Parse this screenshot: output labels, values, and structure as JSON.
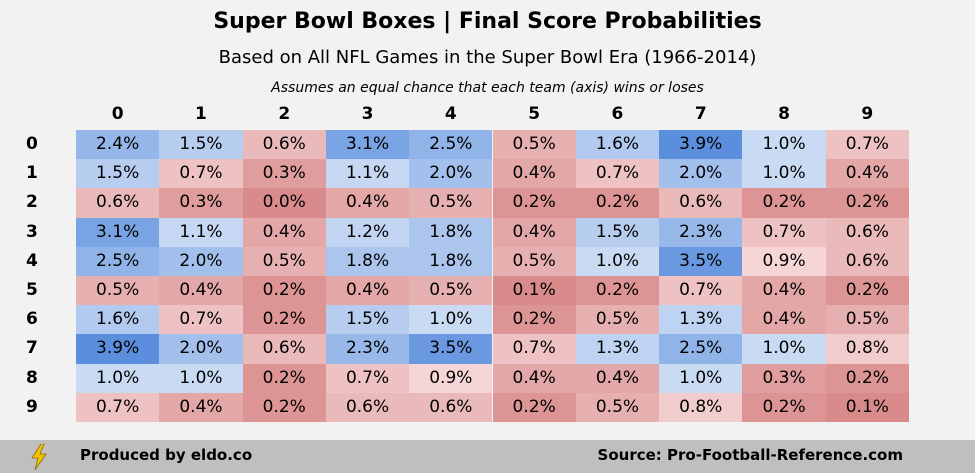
{
  "header": {
    "title": "Super Bowl Boxes | Final Score Probabilities",
    "subtitle": "Based on All NFL Games in the Super Bowl Era (1966-2014)",
    "note": "Assumes an equal chance that each team (axis) wins or loses"
  },
  "footer": {
    "produced": "Produced by eldo.co",
    "source": "Source: Pro-Football-Reference.com",
    "icon": "lightning-bolt-icon"
  },
  "colors": {
    "high": "#5b8fde",
    "mid_blue": "#c9daf3",
    "neutral": "#f8dede",
    "low": "#d98b8b"
  },
  "chart_data": {
    "type": "heatmap",
    "x_categories": [
      "0",
      "1",
      "2",
      "3",
      "4",
      "5",
      "6",
      "7",
      "8",
      "9"
    ],
    "y_categories": [
      "0",
      "1",
      "2",
      "3",
      "4",
      "5",
      "6",
      "7",
      "8",
      "9"
    ],
    "values": [
      [
        2.4,
        1.5,
        0.6,
        3.1,
        2.5,
        0.5,
        1.6,
        3.9,
        1.0,
        0.7
      ],
      [
        1.5,
        0.7,
        0.3,
        1.1,
        2.0,
        0.4,
        0.7,
        2.0,
        1.0,
        0.4
      ],
      [
        0.6,
        0.3,
        0.0,
        0.4,
        0.5,
        0.2,
        0.2,
        0.6,
        0.2,
        0.2
      ],
      [
        3.1,
        1.1,
        0.4,
        1.2,
        1.8,
        0.4,
        1.5,
        2.3,
        0.7,
        0.6
      ],
      [
        2.5,
        2.0,
        0.5,
        1.8,
        1.8,
        0.5,
        1.0,
        3.5,
        0.9,
        0.6
      ],
      [
        0.5,
        0.4,
        0.2,
        0.4,
        0.5,
        0.1,
        0.2,
        0.7,
        0.4,
        0.2
      ],
      [
        1.6,
        0.7,
        0.2,
        1.5,
        1.0,
        0.2,
        0.5,
        1.3,
        0.4,
        0.5
      ],
      [
        3.9,
        2.0,
        0.6,
        2.3,
        3.5,
        0.7,
        1.3,
        2.5,
        1.0,
        0.8
      ],
      [
        1.0,
        1.0,
        0.2,
        0.7,
        0.9,
        0.4,
        0.4,
        1.0,
        0.3,
        0.2
      ],
      [
        0.7,
        0.4,
        0.2,
        0.6,
        0.6,
        0.2,
        0.5,
        0.8,
        0.2,
        0.1
      ]
    ],
    "unit": "%"
  }
}
